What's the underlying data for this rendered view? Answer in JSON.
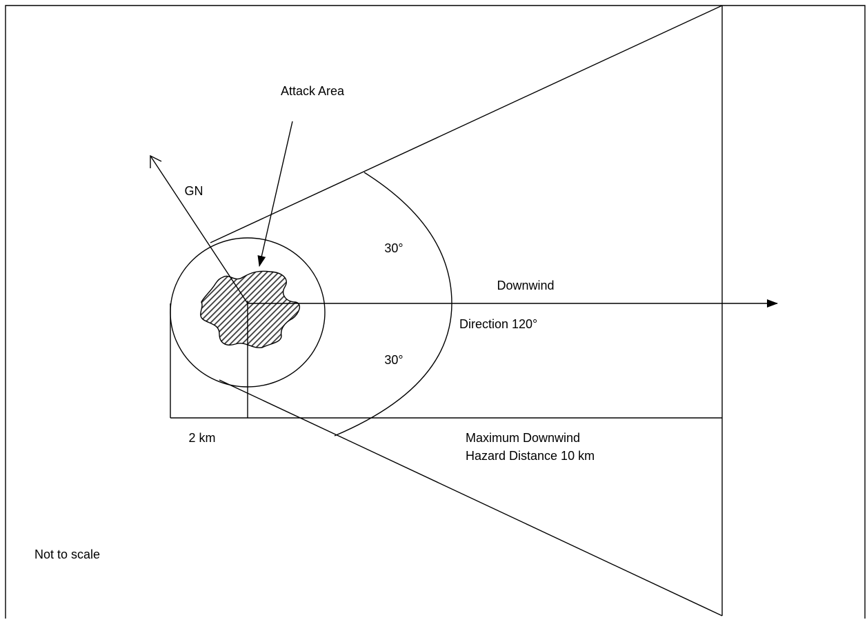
{
  "labels": {
    "attack_area": "Attack Area",
    "grid_north": "GN",
    "angle_upper": "30°",
    "angle_lower": "30°",
    "downwind": "Downwind",
    "direction": "Direction 120°",
    "radius": "2 km",
    "max_distance_line1": "Maximum Downwind",
    "max_distance_line2": "Hazard Distance 10 km",
    "note": "Not to scale"
  },
  "colors": {
    "line": "#000000",
    "hatch_fill": "#4a4a4a",
    "background": "#ffffff"
  }
}
